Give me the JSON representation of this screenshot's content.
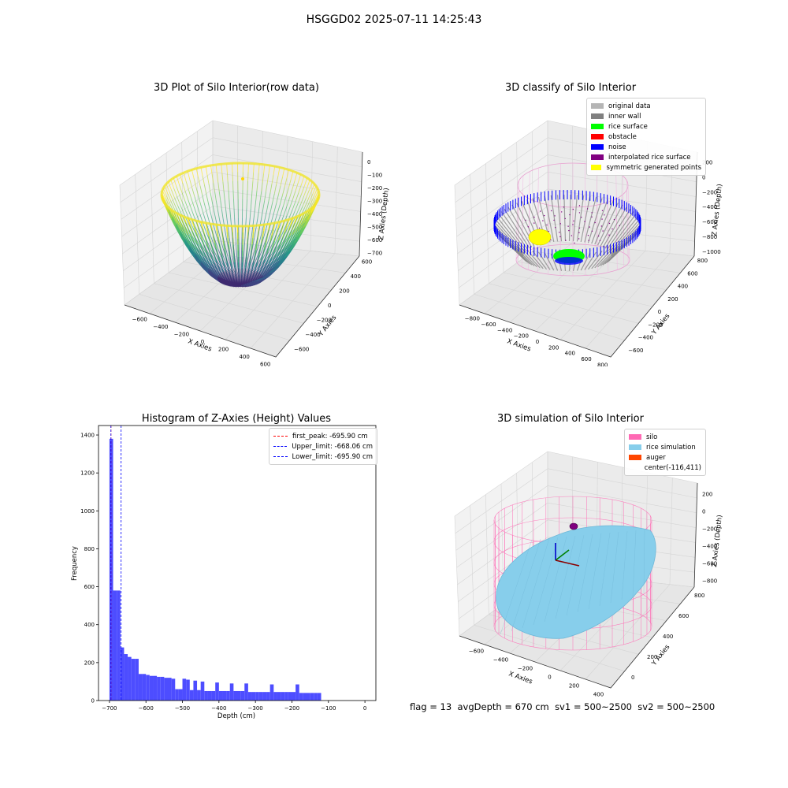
{
  "suptitle": "HSGGD02 2025-07-11 14:25:43",
  "status": {
    "flag": "flag = 13",
    "avg_depth": "avgDepth = 670 cm",
    "sv1": "sv1 = 500~2500",
    "sv2": "sv2 = 500~2500"
  },
  "chart_data": [
    {
      "type": "scatter",
      "id": "raw",
      "title": "3D Plot of Silo Interior(row data)",
      "xlabel": "X Axies",
      "ylabel": "Y Axies",
      "zlabel": "Z Axies (Depth)",
      "xticks": [
        "−600",
        "−400",
        "−200",
        "0",
        "200",
        "400",
        "600"
      ],
      "yticks": [
        "−600",
        "−400",
        "−200",
        "0",
        "200",
        "400",
        "600"
      ],
      "zticks": [
        "0",
        "−100",
        "−200",
        "−300",
        "−400",
        "−500",
        "−600",
        "−700"
      ],
      "xlim": [
        -700,
        700
      ],
      "ylim": [
        -700,
        700
      ],
      "zlim": [
        -760,
        60
      ],
      "surface": "paraboloid bowl, rim radius ~650, bottom depth ~-720",
      "colormap": "viridis"
    },
    {
      "type": "scatter",
      "id": "classify",
      "title": "3D classify of Silo Interior",
      "xlabel": "X Axies",
      "ylabel": "Y Axies",
      "zlabel": "Z Axies (Depth)",
      "xticks": [
        "−800",
        "−600",
        "−400",
        "−200",
        "0",
        "200",
        "400",
        "600",
        "800"
      ],
      "yticks": [
        "−600",
        "−400",
        "−200",
        "0",
        "200",
        "400",
        "600",
        "800"
      ],
      "zticks": [
        "200",
        "0",
        "−200",
        "−400",
        "−600",
        "−800",
        "−1000"
      ],
      "legend": [
        {
          "label": "original data",
          "color": "#b5b5b5"
        },
        {
          "label": "inner wall",
          "color": "#808080"
        },
        {
          "label": "rice surface",
          "color": "#00ff00"
        },
        {
          "label": "obstacle",
          "color": "#ff0000"
        },
        {
          "label": "noise",
          "color": "#0000ff"
        },
        {
          "label": "interpolated rice surface",
          "color": "#800080"
        },
        {
          "label": "symmetric generated points",
          "color": "#ffff00"
        }
      ]
    },
    {
      "type": "bar",
      "id": "histogram",
      "title": "Histogram of Z-Axies (Height) Values",
      "xlabel": "Depth (cm)",
      "ylabel": "Frequency",
      "xlim": [
        -730,
        30
      ],
      "ylim": [
        0,
        1450
      ],
      "xticks": [
        -700,
        -600,
        -500,
        -400,
        -300,
        -200,
        -100,
        0
      ],
      "xtick_labels": [
        "−700",
        "−600",
        "−500",
        "−400",
        "−300",
        "−200",
        "−100",
        "0"
      ],
      "yticks": [
        0,
        200,
        400,
        600,
        800,
        1000,
        1200,
        1400
      ],
      "ytick_labels": [
        "0",
        "200",
        "400",
        "600",
        "800",
        "1000",
        "1200",
        "1400"
      ],
      "bar_color": "#4d4dff",
      "bins": [
        [
          -700,
          -690,
          1380
        ],
        [
          -690,
          -680,
          580
        ],
        [
          -680,
          -670,
          580
        ],
        [
          -670,
          -660,
          280
        ],
        [
          -660,
          -650,
          245
        ],
        [
          -650,
          -640,
          230
        ],
        [
          -640,
          -630,
          220
        ],
        [
          -630,
          -620,
          220
        ],
        [
          -620,
          -610,
          140
        ],
        [
          -610,
          -600,
          140
        ],
        [
          -600,
          -590,
          135
        ],
        [
          -590,
          -580,
          130
        ],
        [
          -580,
          -570,
          130
        ],
        [
          -570,
          -560,
          125
        ],
        [
          -560,
          -550,
          125
        ],
        [
          -550,
          -540,
          120
        ],
        [
          -540,
          -530,
          120
        ],
        [
          -530,
          -520,
          115
        ],
        [
          -520,
          -510,
          60
        ],
        [
          -510,
          -500,
          60
        ],
        [
          -500,
          -490,
          115
        ],
        [
          -490,
          -480,
          110
        ],
        [
          -480,
          -470,
          55
        ],
        [
          -470,
          -460,
          105
        ],
        [
          -460,
          -450,
          55
        ],
        [
          -450,
          -440,
          100
        ],
        [
          -440,
          -430,
          50
        ],
        [
          -430,
          -420,
          50
        ],
        [
          -420,
          -410,
          50
        ],
        [
          -410,
          -400,
          95
        ],
        [
          -400,
          -390,
          50
        ],
        [
          -390,
          -380,
          50
        ],
        [
          -380,
          -370,
          50
        ],
        [
          -370,
          -360,
          90
        ],
        [
          -360,
          -350,
          50
        ],
        [
          -350,
          -340,
          50
        ],
        [
          -340,
          -330,
          50
        ],
        [
          -330,
          -320,
          90
        ],
        [
          -320,
          -310,
          45
        ],
        [
          -310,
          -300,
          45
        ],
        [
          -300,
          -290,
          45
        ],
        [
          -290,
          -280,
          45
        ],
        [
          -280,
          -270,
          45
        ],
        [
          -270,
          -260,
          45
        ],
        [
          -260,
          -250,
          85
        ],
        [
          -250,
          -240,
          45
        ],
        [
          -240,
          -230,
          45
        ],
        [
          -230,
          -220,
          45
        ],
        [
          -220,
          -210,
          45
        ],
        [
          -210,
          -200,
          45
        ],
        [
          -200,
          -190,
          45
        ],
        [
          -190,
          -180,
          85
        ],
        [
          -180,
          -170,
          40
        ],
        [
          -170,
          -160,
          40
        ],
        [
          -160,
          -150,
          40
        ],
        [
          -150,
          -140,
          40
        ],
        [
          -140,
          -130,
          40
        ],
        [
          -130,
          -120,
          40
        ]
      ],
      "vlines": [
        {
          "x": -695.9,
          "color": "#ff0000",
          "label": "first_peak: -695.90 cm"
        },
        {
          "x": -668.06,
          "color": "#0000ff",
          "label": "Upper_limit: -668.06 cm"
        },
        {
          "x": -695.9,
          "color": "#0000ff",
          "label": "Lower_limit: -695.90 cm"
        }
      ],
      "legend_position": "top-right"
    },
    {
      "type": "scatter",
      "id": "simulation",
      "title": "3D simulation of Silo Interior",
      "xlabel": "X Axies",
      "ylabel": "Y Axies",
      "zlabel": "Z Axies (Depth)",
      "xticks": [
        "−600",
        "−400",
        "−200",
        "0",
        "200",
        "400"
      ],
      "yticks": [
        "0",
        "200",
        "400",
        "600",
        "800"
      ],
      "zticks": [
        "200",
        "0",
        "−200",
        "−400",
        "−600",
        "−800"
      ],
      "legend": [
        {
          "label": "silo",
          "color": "#ff69b4"
        },
        {
          "label": "rice simulation",
          "color": "#87ceeb"
        },
        {
          "label": "auger",
          "color": "#ff4500"
        },
        {
          "label": "center(-116,411)",
          "color": ""
        }
      ]
    }
  ]
}
